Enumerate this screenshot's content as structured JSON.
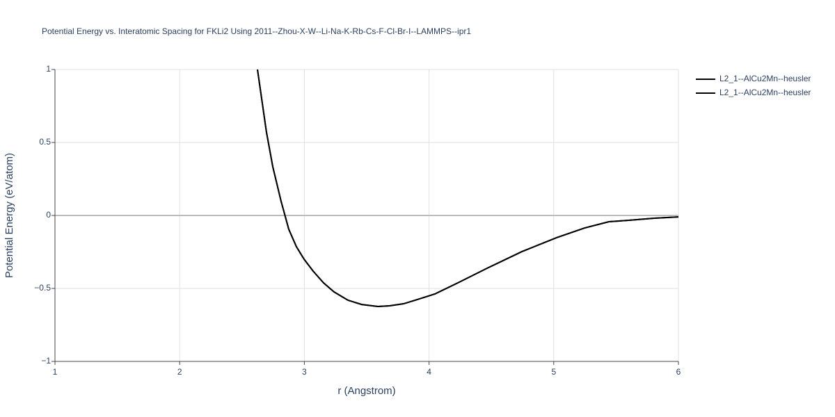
{
  "chart_data": {
    "type": "line",
    "title": "Potential Energy vs. Interatomic Spacing for FKLi2 Using 2011--Zhou-X-W--Li-Na-K-Rb-Cs-F-Cl-Br-I--LAMMPS--ipr1",
    "xlabel": "r (Angstrom)",
    "ylabel": "Potential Energy (eV/atom)",
    "x": [
      2.624,
      2.696,
      2.747,
      2.814,
      2.875,
      2.936,
      2.998,
      3.07,
      3.154,
      3.238,
      3.35,
      3.46,
      3.59,
      3.684,
      3.796,
      3.907,
      4.047,
      4.242,
      4.465,
      4.744,
      5.023,
      5.247,
      5.442,
      5.609,
      5.804,
      6.0
    ],
    "series": [
      {
        "name": "L2_1--AlCu2Mn--heusler",
        "color": "#000000",
        "values": [
          1.0,
          0.571,
          0.333,
          0.095,
          -0.095,
          -0.214,
          -0.3,
          -0.381,
          -0.462,
          -0.524,
          -0.581,
          -0.61,
          -0.624,
          -0.619,
          -0.605,
          -0.576,
          -0.538,
          -0.457,
          -0.362,
          -0.248,
          -0.152,
          -0.086,
          -0.043,
          -0.033,
          -0.019,
          -0.01
        ]
      },
      {
        "name": "L2_1--AlCu2Mn--heusler",
        "color": "#000000",
        "values": [
          1.0,
          0.571,
          0.333,
          0.095,
          -0.095,
          -0.214,
          -0.3,
          -0.381,
          -0.462,
          -0.524,
          -0.581,
          -0.61,
          -0.624,
          -0.619,
          -0.605,
          -0.576,
          -0.538,
          -0.457,
          -0.362,
          -0.248,
          -0.152,
          -0.086,
          -0.043,
          -0.033,
          -0.019,
          -0.01
        ]
      }
    ],
    "xlim": [
      1,
      6
    ],
    "xticks": [
      1,
      2,
      3,
      4,
      5,
      6
    ],
    "ylim": [
      -1,
      1
    ],
    "yticks": [
      {
        "value": -1,
        "label": "−1"
      },
      {
        "value": -0.5,
        "label": "−0.5"
      },
      0,
      0.5,
      1
    ],
    "grid": true,
    "legend": "right"
  }
}
